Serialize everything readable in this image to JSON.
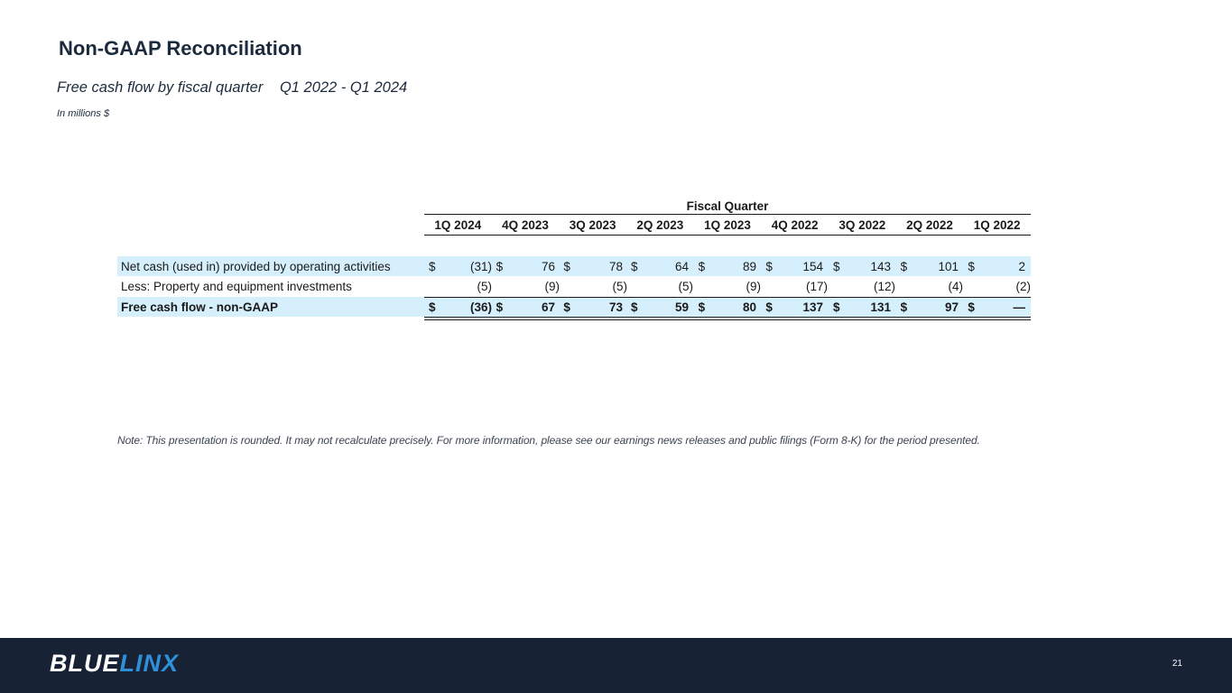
{
  "title": "Non-GAAP Reconciliation",
  "subtitle": "Free cash flow by fiscal quarter",
  "date_range": "Q1 2022 - Q1 2024",
  "units": "In millions $",
  "table": {
    "group_header": "Fiscal Quarter",
    "columns": [
      "1Q 2024",
      "4Q 2023",
      "3Q 2023",
      "2Q 2023",
      "1Q 2023",
      "4Q 2022",
      "3Q 2022",
      "2Q 2022",
      "1Q 2022"
    ],
    "rows": [
      {
        "label": "Net cash (used in) provided by operating activities",
        "values": [
          "(31)",
          "76",
          "78",
          "64",
          "89",
          "154",
          "143",
          "101",
          "2"
        ],
        "currency": "$"
      },
      {
        "label": "Less: Property and equipment investments",
        "values": [
          "(5)",
          "(9)",
          "(5)",
          "(5)",
          "(9)",
          "(17)",
          "(12)",
          "(4)",
          "(2)"
        ]
      },
      {
        "label": "Free cash flow - non-GAAP",
        "values": [
          "(36)",
          "67",
          "73",
          "59",
          "80",
          "137",
          "131",
          "97",
          "—"
        ],
        "currency": "$"
      }
    ]
  },
  "note": "Note: This presentation is rounded. It may not recalculate precisely. For more information, please see our earnings news releases and public filings (Form 8-K) for the period presented.",
  "footer": {
    "logo_part1": "BLUE",
    "logo_part2": "LINX",
    "page_number": "21"
  }
}
